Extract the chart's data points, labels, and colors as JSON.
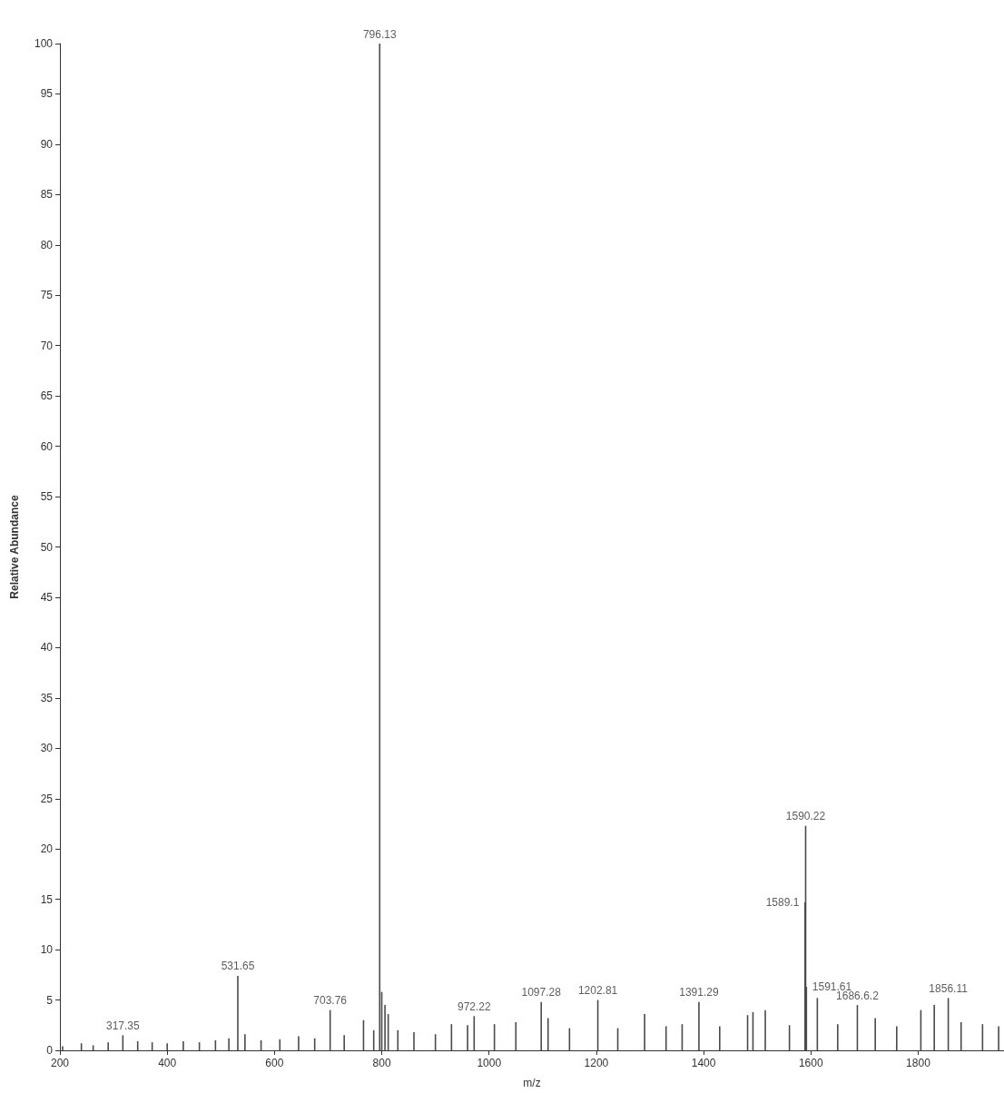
{
  "chart_data": {
    "type": "bar",
    "xlabel": "m/z",
    "ylabel": "Relative Abundance",
    "color": "#4a4a4a",
    "x": [
      205,
      240,
      262,
      290,
      317.35,
      345,
      372,
      400,
      430,
      460,
      490,
      515,
      531.65,
      545,
      575,
      610,
      645,
      675,
      703.76,
      730,
      766,
      785,
      796.13,
      800,
      806,
      812,
      830,
      860,
      900,
      930,
      960,
      972.22,
      1010,
      1050,
      1097.28,
      1110,
      1150,
      1202.81,
      1240,
      1290,
      1330,
      1360,
      1391.29,
      1430,
      1482,
      1492,
      1515,
      1560,
      1589.1,
      1590.22,
      1591.61,
      1612,
      1650,
      1686.62,
      1720,
      1760,
      1805,
      1830,
      1856.11,
      1880,
      1920,
      1950
    ],
    "values": [
      0.4,
      0.7,
      0.5,
      0.8,
      1.5,
      0.9,
      0.8,
      0.7,
      0.9,
      0.8,
      1.0,
      1.2,
      7.4,
      1.6,
      1.0,
      1.1,
      1.4,
      1.2,
      4.0,
      1.5,
      3.0,
      2.0,
      100,
      5.8,
      4.5,
      3.6,
      2.0,
      1.8,
      1.6,
      2.6,
      2.5,
      3.4,
      2.6,
      2.8,
      4.8,
      3.2,
      2.2,
      5.0,
      2.2,
      3.6,
      2.4,
      2.6,
      4.8,
      2.4,
      3.5,
      3.8,
      4.0,
      2.5,
      14.7,
      22.3,
      6.3,
      5.2,
      2.6,
      4.5,
      3.2,
      2.4,
      4.0,
      4.5,
      5.2,
      2.8,
      2.6,
      2.4
    ],
    "annotations": [
      {
        "text": "317.35",
        "x": 317.35,
        "y": 1.5
      },
      {
        "text": "531.65",
        "x": 531.65,
        "y": 7.4
      },
      {
        "text": "703.76",
        "x": 703.76,
        "y": 4.0
      },
      {
        "text": "796.13",
        "x": 796.13,
        "y": 100
      },
      {
        "text": "972.22",
        "x": 972.22,
        "y": 3.4
      },
      {
        "text": "1097.28",
        "x": 1097.28,
        "y": 4.8
      },
      {
        "text": "1202.81",
        "x": 1202.81,
        "y": 5.0
      },
      {
        "text": "1391.29",
        "x": 1391.29,
        "y": 4.8
      },
      {
        "text": "1589.1",
        "x": 1589.1,
        "y": 14.7
      },
      {
        "text": "1590.22",
        "x": 1590.22,
        "y": 22.3
      },
      {
        "text": "1591.61",
        "x": 1591.61,
        "y": 6.3
      },
      {
        "text": "1686.6.2",
        "x": 1686.62,
        "y": 4.5
      },
      {
        "text": "1856.11",
        "x": 1856.11,
        "y": 5.2
      }
    ],
    "xlim": [
      200,
      1960
    ],
    "xticks": [
      200,
      400,
      600,
      800,
      1000,
      1200,
      1400,
      1600,
      1800
    ],
    "ylim": [
      0,
      100
    ],
    "yticks": [
      0,
      5,
      10,
      15,
      20,
      25,
      30,
      35,
      40,
      45,
      50,
      55,
      60,
      65,
      70,
      75,
      80,
      85,
      90,
      95,
      100
    ],
    "grid": false
  }
}
